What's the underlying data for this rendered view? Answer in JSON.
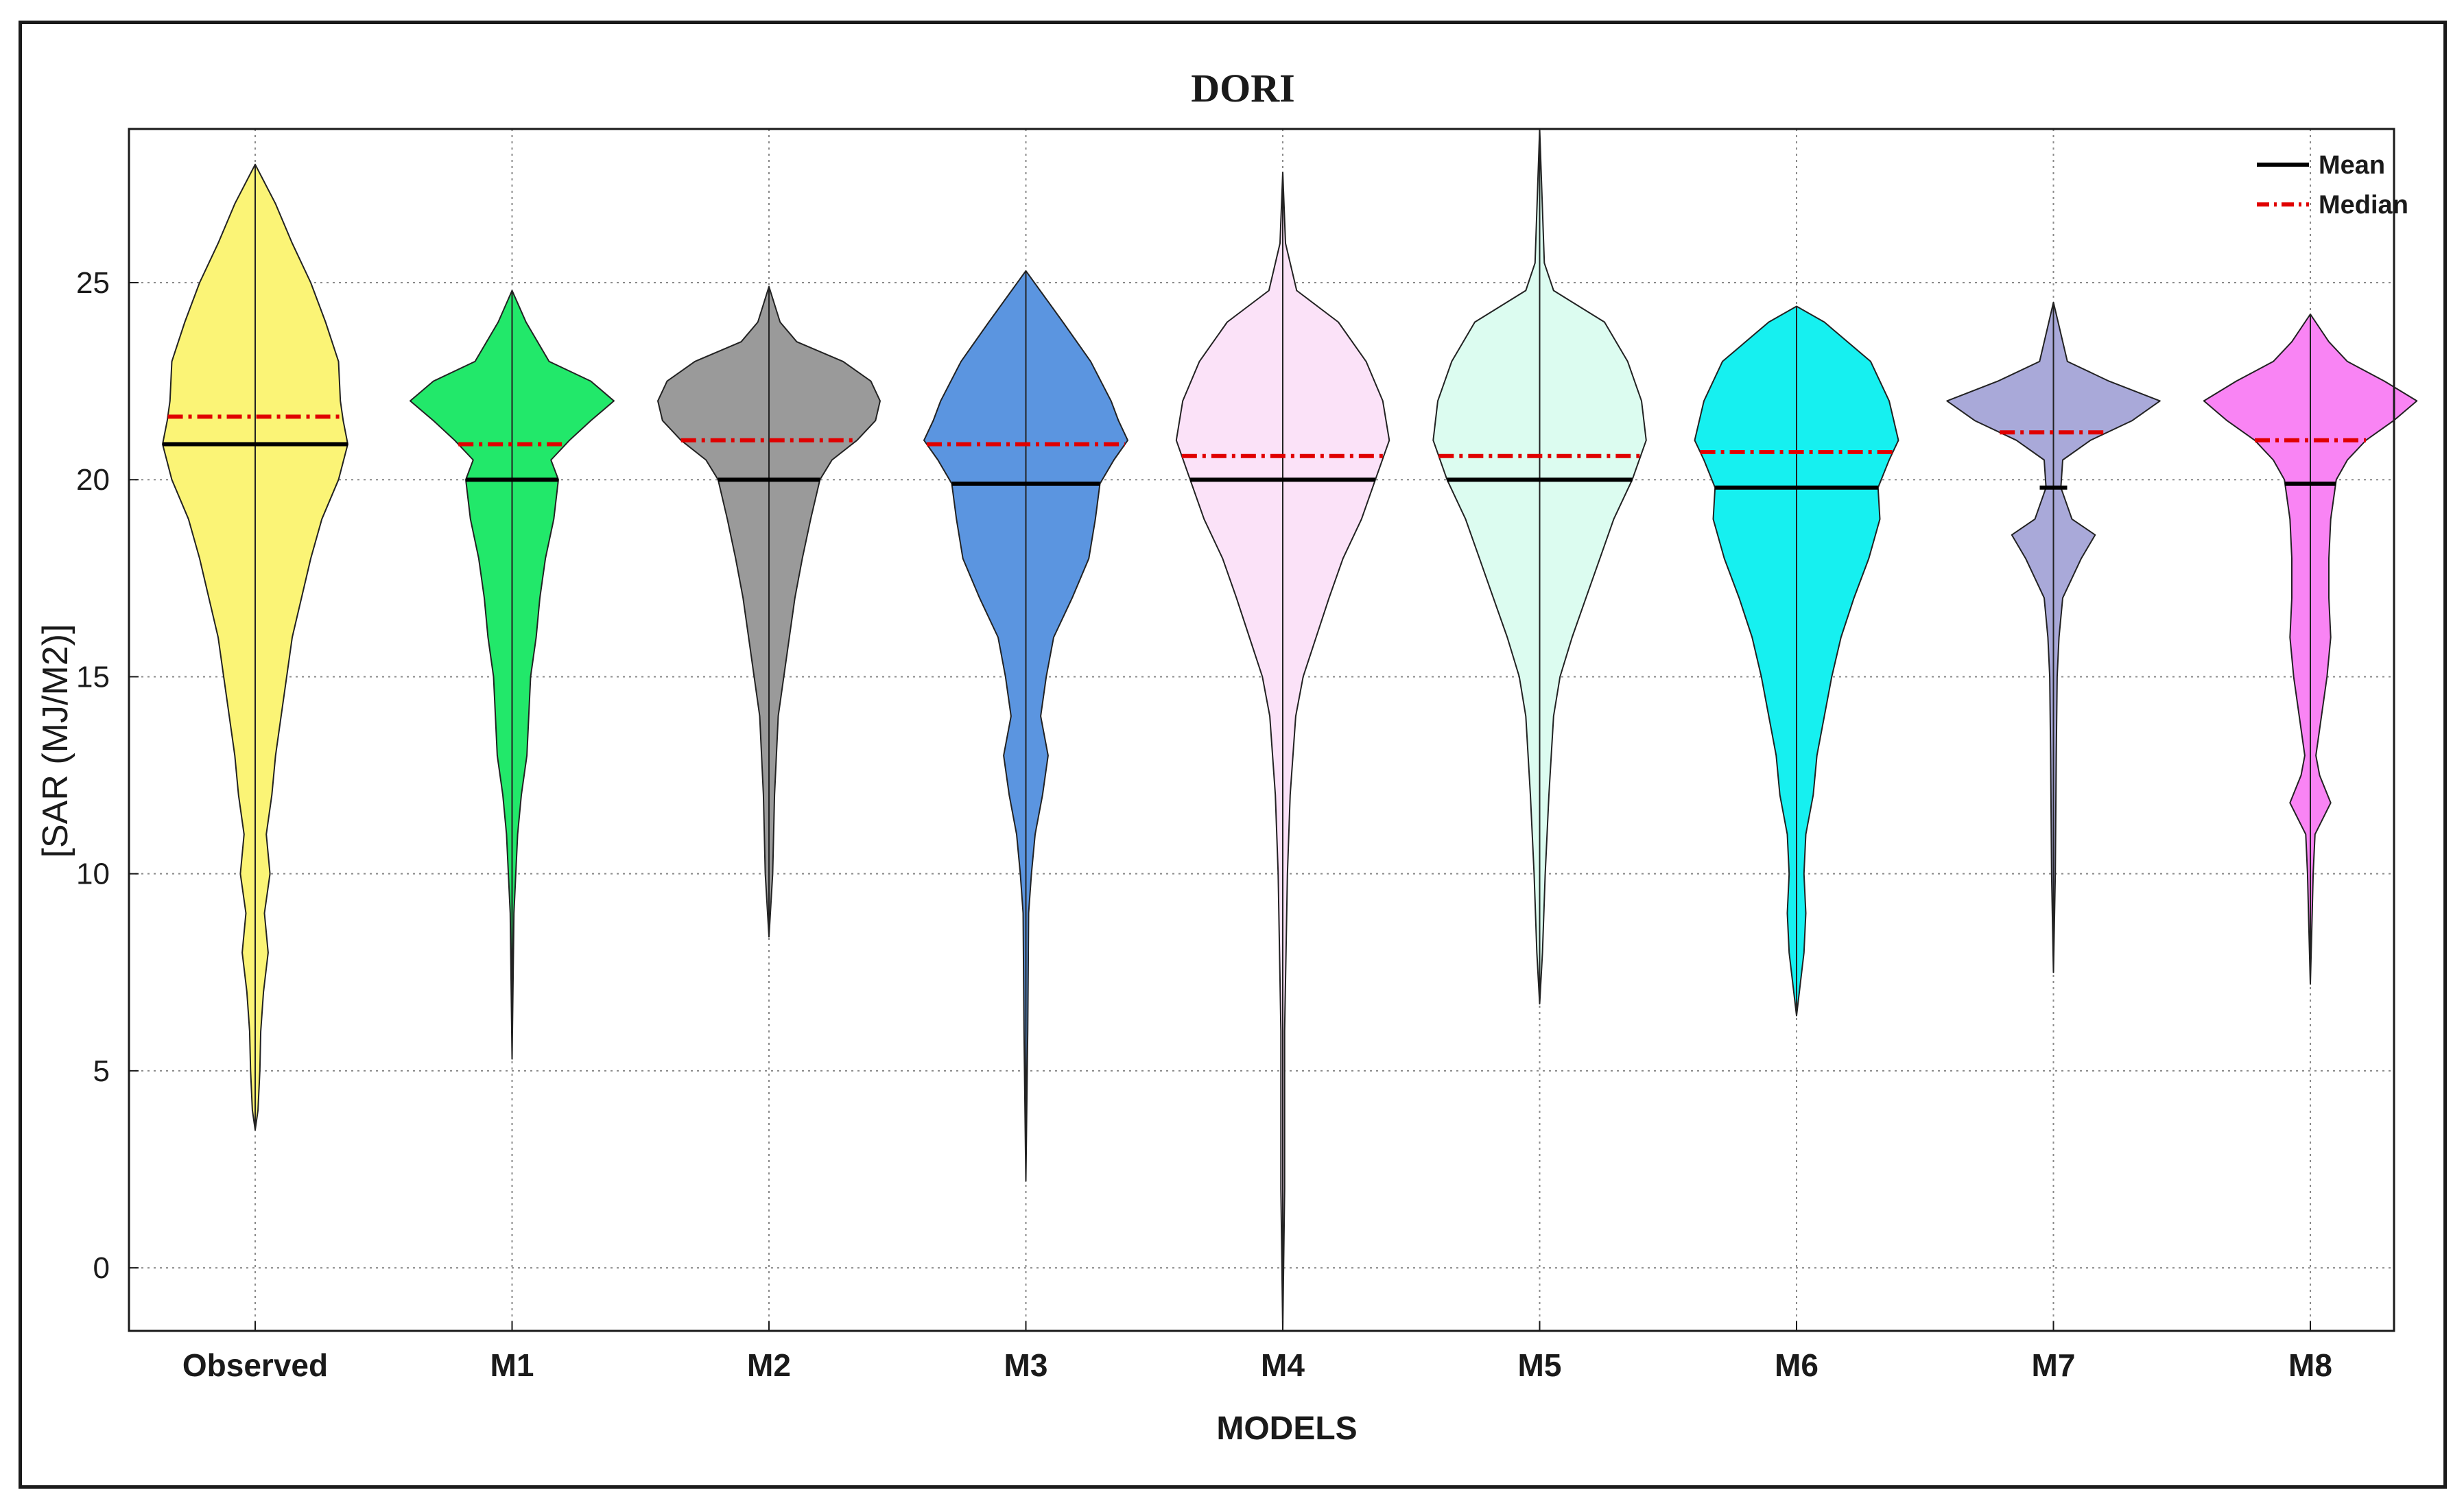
{
  "chart_data": {
    "type": "violin",
    "title": "DORI",
    "xlabel": "MODELS",
    "ylabel": "[SAR (MJ/M2)]",
    "ylim": [
      -1.6,
      28.9
    ],
    "yticks": [
      0,
      5,
      10,
      15,
      20,
      25
    ],
    "grid": true,
    "legend": {
      "position": "top-right",
      "entries": [
        {
          "label": "Mean",
          "style": "solid",
          "color": "#000000"
        },
        {
          "label": "Median",
          "style": "dash-dot",
          "color": "#e00000"
        }
      ]
    },
    "categories": [
      "Observed",
      "M1",
      "M2",
      "M3",
      "M4",
      "M5",
      "M6",
      "M7",
      "M8"
    ],
    "series": [
      {
        "name": "Observed",
        "color": "#fbf476",
        "mean": 20.9,
        "median": 21.6,
        "min": 3.5,
        "max": 28.0,
        "profile": [
          [
            3.5,
            0
          ],
          [
            4.0,
            3
          ],
          [
            5.0,
            5
          ],
          [
            6.0,
            6
          ],
          [
            7.0,
            9
          ],
          [
            8.0,
            14
          ],
          [
            9.0,
            10
          ],
          [
            10.0,
            16
          ],
          [
            11.0,
            12
          ],
          [
            12.0,
            18
          ],
          [
            13.0,
            22
          ],
          [
            14.0,
            28
          ],
          [
            15.0,
            34
          ],
          [
            16.0,
            40
          ],
          [
            17.0,
            50
          ],
          [
            18.0,
            60
          ],
          [
            19.0,
            72
          ],
          [
            20.0,
            90
          ],
          [
            20.9,
            100
          ],
          [
            21.5,
            95
          ],
          [
            22.0,
            92
          ],
          [
            23.0,
            90
          ],
          [
            24.0,
            76
          ],
          [
            25.0,
            60
          ],
          [
            26.0,
            40
          ],
          [
            27.0,
            22
          ],
          [
            28.0,
            0
          ]
        ]
      },
      {
        "name": "M1",
        "color": "#22e86a",
        "mean": 20.0,
        "median": 20.9,
        "min": 5.3,
        "max": 24.8,
        "profile": [
          [
            5.3,
            0
          ],
          [
            9.0,
            2
          ],
          [
            11.0,
            6
          ],
          [
            12.0,
            10
          ],
          [
            13.0,
            16
          ],
          [
            14.0,
            18
          ],
          [
            15.0,
            20
          ],
          [
            16.0,
            26
          ],
          [
            17.0,
            30
          ],
          [
            18.0,
            36
          ],
          [
            19.0,
            45
          ],
          [
            20.0,
            50
          ],
          [
            20.5,
            42
          ],
          [
            21.0,
            62
          ],
          [
            21.5,
            85
          ],
          [
            22.0,
            110
          ],
          [
            22.5,
            85
          ],
          [
            23.0,
            40
          ],
          [
            24.0,
            15
          ],
          [
            24.8,
            0
          ]
        ]
      },
      {
        "name": "M2",
        "color": "#9a9a9a",
        "mean": 20.0,
        "median": 21.0,
        "min": 8.4,
        "max": 24.9,
        "profile": [
          [
            8.4,
            0
          ],
          [
            10.0,
            4
          ],
          [
            12.0,
            6
          ],
          [
            14.0,
            10
          ],
          [
            15.0,
            16
          ],
          [
            16.0,
            22
          ],
          [
            17.0,
            28
          ],
          [
            18.0,
            36
          ],
          [
            19.0,
            45
          ],
          [
            20.0,
            55
          ],
          [
            20.5,
            68
          ],
          [
            21.0,
            95
          ],
          [
            21.5,
            115
          ],
          [
            22.0,
            120
          ],
          [
            22.5,
            110
          ],
          [
            23.0,
            80
          ],
          [
            23.5,
            30
          ],
          [
            24.0,
            12
          ],
          [
            24.9,
            0
          ]
        ]
      },
      {
        "name": "M3",
        "color": "#5b95e0",
        "mean": 19.9,
        "median": 20.9,
        "min": 2.2,
        "max": 25.3,
        "profile": [
          [
            2.2,
            0
          ],
          [
            6.0,
            2
          ],
          [
            9.0,
            3
          ],
          [
            10.0,
            6
          ],
          [
            11.0,
            10
          ],
          [
            12.0,
            18
          ],
          [
            13.0,
            24
          ],
          [
            14.0,
            16
          ],
          [
            15.0,
            22
          ],
          [
            16.0,
            30
          ],
          [
            17.0,
            50
          ],
          [
            18.0,
            68
          ],
          [
            19.0,
            75
          ],
          [
            19.9,
            80
          ],
          [
            20.5,
            95
          ],
          [
            21.0,
            110
          ],
          [
            21.5,
            100
          ],
          [
            22.0,
            92
          ],
          [
            23.0,
            70
          ],
          [
            24.0,
            40
          ],
          [
            25.3,
            0
          ]
        ]
      },
      {
        "name": "M4",
        "color": "#fbe2f8",
        "mean": 20.0,
        "median": 20.6,
        "min": -1.6,
        "max": 27.8,
        "profile": [
          [
            -1.6,
            0
          ],
          [
            2.0,
            2
          ],
          [
            6.0,
            2
          ],
          [
            10.0,
            5
          ],
          [
            12.0,
            8
          ],
          [
            14.0,
            14
          ],
          [
            15.0,
            22
          ],
          [
            16.0,
            36
          ],
          [
            17.0,
            50
          ],
          [
            18.0,
            65
          ],
          [
            19.0,
            85
          ],
          [
            20.0,
            100
          ],
          [
            21.0,
            115
          ],
          [
            22.0,
            108
          ],
          [
            23.0,
            90
          ],
          [
            24.0,
            60
          ],
          [
            24.8,
            15
          ],
          [
            26.0,
            3
          ],
          [
            27.8,
            0
          ]
        ]
      },
      {
        "name": "M5",
        "color": "#dcfcf0",
        "mean": 20.0,
        "median": 20.6,
        "min": 6.7,
        "max": 28.9,
        "profile": [
          [
            6.7,
            0
          ],
          [
            8.0,
            3
          ],
          [
            10.0,
            6
          ],
          [
            12.0,
            10
          ],
          [
            14.0,
            15
          ],
          [
            15.0,
            22
          ],
          [
            16.0,
            35
          ],
          [
            17.0,
            50
          ],
          [
            18.0,
            65
          ],
          [
            19.0,
            80
          ],
          [
            20.0,
            100
          ],
          [
            21.0,
            115
          ],
          [
            22.0,
            110
          ],
          [
            23.0,
            95
          ],
          [
            24.0,
            70
          ],
          [
            24.8,
            15
          ],
          [
            25.5,
            5
          ],
          [
            28.9,
            0
          ]
        ]
      },
      {
        "name": "M6",
        "color": "#16f0f0",
        "mean": 19.8,
        "median": 20.7,
        "min": 6.4,
        "max": 24.4,
        "profile": [
          [
            6.4,
            0
          ],
          [
            8.0,
            8
          ],
          [
            9.0,
            10
          ],
          [
            10.0,
            8
          ],
          [
            11.0,
            10
          ],
          [
            12.0,
            18
          ],
          [
            13.0,
            22
          ],
          [
            14.0,
            30
          ],
          [
            15.0,
            38
          ],
          [
            16.0,
            48
          ],
          [
            17.0,
            62
          ],
          [
            18.0,
            78
          ],
          [
            19.0,
            90
          ],
          [
            19.8,
            88
          ],
          [
            20.5,
            100
          ],
          [
            21.0,
            110
          ],
          [
            22.0,
            100
          ],
          [
            23.0,
            80
          ],
          [
            24.0,
            30
          ],
          [
            24.4,
            0
          ]
        ]
      },
      {
        "name": "M7",
        "color": "#a9a9d9",
        "mean": 19.8,
        "median": 21.2,
        "min": 7.5,
        "max": 24.5,
        "profile": [
          [
            7.5,
            0
          ],
          [
            10.0,
            2
          ],
          [
            13.0,
            3
          ],
          [
            15.0,
            4
          ],
          [
            16.0,
            6
          ],
          [
            17.0,
            10
          ],
          [
            18.0,
            30
          ],
          [
            18.6,
            45
          ],
          [
            19.0,
            20
          ],
          [
            19.8,
            8
          ],
          [
            20.5,
            10
          ],
          [
            21.0,
            40
          ],
          [
            21.5,
            85
          ],
          [
            22.0,
            115
          ],
          [
            22.5,
            60
          ],
          [
            23.0,
            15
          ],
          [
            24.0,
            5
          ],
          [
            24.5,
            0
          ]
        ]
      },
      {
        "name": "M8",
        "color": "#f984f4",
        "mean": 19.9,
        "median": 21.0,
        "min": 7.2,
        "max": 24.2,
        "profile": [
          [
            7.2,
            0
          ],
          [
            9.0,
            2
          ],
          [
            10.0,
            3
          ],
          [
            11.0,
            5
          ],
          [
            11.8,
            22
          ],
          [
            12.5,
            10
          ],
          [
            13.0,
            6
          ],
          [
            14.0,
            12
          ],
          [
            15.0,
            18
          ],
          [
            16.0,
            22
          ],
          [
            17.0,
            20
          ],
          [
            18.0,
            20
          ],
          [
            19.0,
            22
          ],
          [
            20.0,
            28
          ],
          [
            20.5,
            40
          ],
          [
            21.0,
            60
          ],
          [
            21.5,
            90
          ],
          [
            22.0,
            115
          ],
          [
            22.5,
            80
          ],
          [
            23.0,
            40
          ],
          [
            23.5,
            20
          ],
          [
            24.2,
            0
          ]
        ]
      }
    ]
  }
}
